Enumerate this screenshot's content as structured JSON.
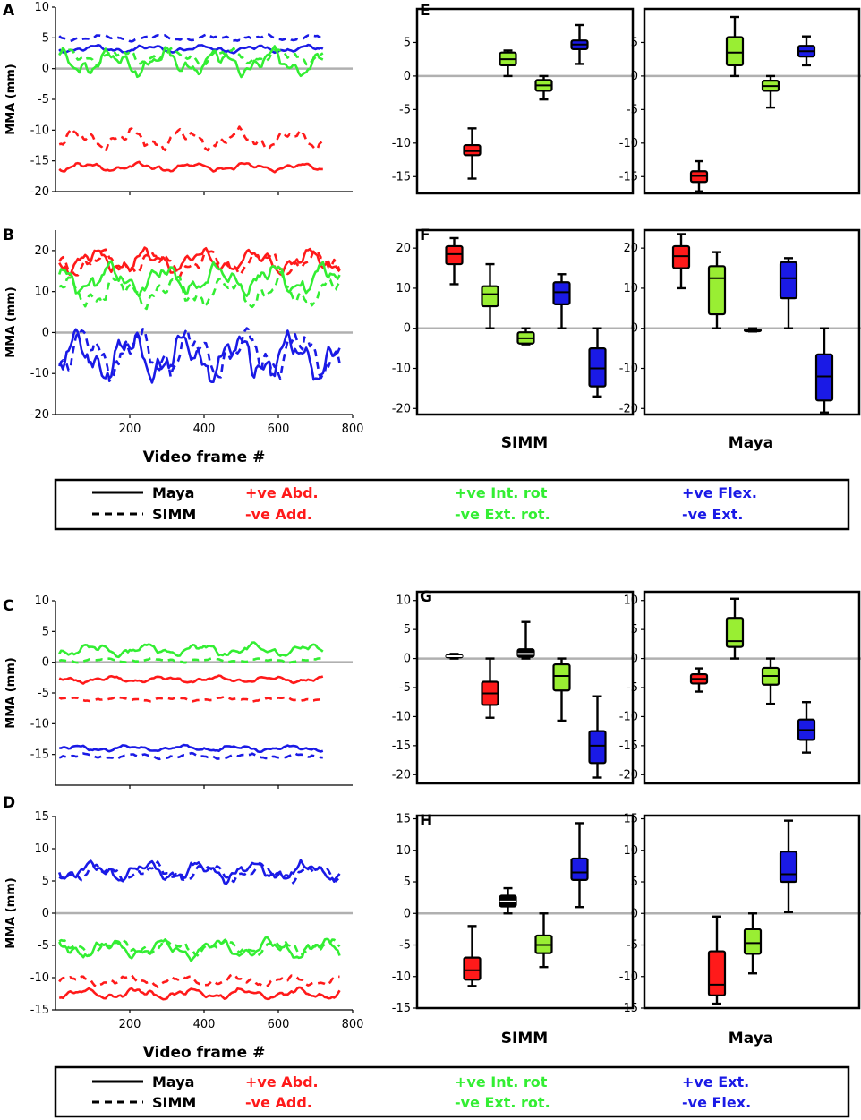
{
  "colors": {
    "red": "#ff1a1a",
    "green": "#33ee33",
    "blue": "#1a1ae6",
    "lime": "#99ee33",
    "black": "#000000",
    "zero": "#b0b0b0"
  },
  "legend_top": {
    "maya": "Maya",
    "simm": "SIMM",
    "items": [
      {
        "pos": "+ve Abd.",
        "neg": "-ve Add.",
        "color": "#ff1a1a"
      },
      {
        "pos": "+ve Int. rot",
        "neg": "-ve Ext. rot.",
        "color": "#33ee33"
      },
      {
        "pos": "+ve Flex.",
        "neg": "-ve Ext.",
        "color": "#1a1ae6"
      }
    ]
  },
  "legend_bottom": {
    "maya": "Maya",
    "simm": "SIMM",
    "items": [
      {
        "pos": "+ve Abd.",
        "neg": "-ve Add.",
        "color": "#ff1a1a"
      },
      {
        "pos": "+ve Int. rot",
        "neg": "-ve Ext. rot.",
        "color": "#33ee33"
      },
      {
        "pos": "+ve Ext.",
        "neg": "-ve Flex.",
        "color": "#1a1ae6"
      }
    ]
  },
  "group_labels": {
    "simm": "SIMM",
    "maya": "Maya"
  },
  "chart_data": [
    {
      "panel": "A",
      "type": "line",
      "ylabel": "MMA (mm)",
      "xlabel": "",
      "xlim": [
        0,
        800
      ],
      "ylim": [
        -20,
        10
      ],
      "yticks": [
        -20,
        -15,
        -10,
        -5,
        0,
        5,
        10
      ],
      "xticks": [],
      "series": [
        {
          "name": "Maya +ve Flex./-ve Ext.",
          "color": "blue",
          "dash": false,
          "base": 3.2,
          "amp": 0.7,
          "seed": 1
        },
        {
          "name": "SIMM +ve Flex./-ve Ext.",
          "color": "blue",
          "dash": true,
          "base": 5,
          "amp": 0.6,
          "seed": 2
        },
        {
          "name": "Maya +ve Int. rot/-ve Ext. rot.",
          "color": "green",
          "dash": false,
          "base": 1,
          "amp": 2.5,
          "seed": 3
        },
        {
          "name": "SIMM +ve Int. rot/-ve Ext. rot.",
          "color": "green",
          "dash": true,
          "base": 2,
          "amp": 1.5,
          "seed": 4
        },
        {
          "name": "SIMM +ve Abd./-ve Add.",
          "color": "red",
          "dash": true,
          "base": -11.5,
          "amp": 2,
          "seed": 5
        },
        {
          "name": "Maya +ve Abd./-ve Add.",
          "color": "red",
          "dash": false,
          "base": -16,
          "amp": 0.8,
          "seed": 6
        }
      ]
    },
    {
      "panel": "B",
      "type": "line",
      "ylabel": "MMA (mm)",
      "xlabel": "Video frame #",
      "xlim": [
        0,
        800
      ],
      "ylim": [
        -20,
        25
      ],
      "yticks": [
        -20,
        -10,
        0,
        10,
        20
      ],
      "xticks": [
        200,
        400,
        600,
        800
      ],
      "series": [
        {
          "name": "Maya +ve Abd./-ve Add.",
          "color": "red",
          "dash": false,
          "base": 17.5,
          "amp": 3.5,
          "seed": 7
        },
        {
          "name": "SIMM +ve Abd./-ve Add.",
          "color": "red",
          "dash": true,
          "base": 17,
          "amp": 3.5,
          "seed": 8
        },
        {
          "name": "Maya +ve Int. rot/-ve Ext. rot.",
          "color": "green",
          "dash": false,
          "base": 13,
          "amp": 4.5,
          "seed": 9
        },
        {
          "name": "SIMM +ve Int. rot/-ve Ext. rot.",
          "color": "green",
          "dash": true,
          "base": 10,
          "amp": 4.5,
          "seed": 10
        },
        {
          "name": "Maya +ve Flex./-ve Ext.",
          "color": "blue",
          "dash": false,
          "base": -6,
          "amp": 7,
          "seed": 11
        },
        {
          "name": "SIMM +ve Flex./-ve Ext.",
          "color": "blue",
          "dash": true,
          "base": -5,
          "amp": 7,
          "seed": 12
        }
      ]
    },
    {
      "panel": "C",
      "type": "line",
      "ylabel": "MMA (mm)",
      "xlabel": "",
      "xlim": [
        0,
        800
      ],
      "ylim": [
        -20,
        10
      ],
      "yticks": [
        -15,
        -10,
        -5,
        0,
        5,
        10
      ],
      "xticks": [],
      "series": [
        {
          "name": "Maya +ve Int. rot/-ve Ext. rot.",
          "color": "green",
          "dash": false,
          "base": 2,
          "amp": 1.2,
          "seed": 13
        },
        {
          "name": "SIMM +ve Int. rot/-ve Ext. rot.",
          "color": "green",
          "dash": true,
          "base": 0.3,
          "amp": 0.4,
          "seed": 14
        },
        {
          "name": "Maya +ve Abd./-ve Add.",
          "color": "red",
          "dash": false,
          "base": -2.8,
          "amp": 0.6,
          "seed": 15
        },
        {
          "name": "SIMM +ve Abd./-ve Add.",
          "color": "red",
          "dash": true,
          "base": -6,
          "amp": 0.4,
          "seed": 16
        },
        {
          "name": "Maya +ve Flex./-ve Ext.",
          "color": "blue",
          "dash": false,
          "base": -14,
          "amp": 0.6,
          "seed": 17
        },
        {
          "name": "SIMM +ve Flex./-ve Ext.",
          "color": "blue",
          "dash": true,
          "base": -15.3,
          "amp": 0.5,
          "seed": 18
        }
      ]
    },
    {
      "panel": "D",
      "type": "line",
      "ylabel": "MMA (mm)",
      "xlabel": "Video frame #",
      "xlim": [
        0,
        800
      ],
      "ylim": [
        -15,
        15
      ],
      "yticks": [
        -15,
        -10,
        -5,
        0,
        5,
        10,
        15
      ],
      "xticks": [
        200,
        400,
        600,
        800
      ],
      "series": [
        {
          "name": "Maya +ve Ext./-ve Flex.",
          "color": "blue",
          "dash": false,
          "base": 6.5,
          "amp": 1.8,
          "seed": 19
        },
        {
          "name": "SIMM +ve Ext./-ve Flex.",
          "color": "blue",
          "dash": true,
          "base": 6.3,
          "amp": 1.6,
          "seed": 20
        },
        {
          "name": "Maya +ve Int. rot/-ve Ext. rot.",
          "color": "green",
          "dash": false,
          "base": -5.5,
          "amp": 1.8,
          "seed": 21
        },
        {
          "name": "SIMM +ve Int. rot/-ve Ext. rot.",
          "color": "green",
          "dash": true,
          "base": -5.3,
          "amp": 1.4,
          "seed": 22
        },
        {
          "name": "SIMM +ve Abd./-ve Add.",
          "color": "red",
          "dash": true,
          "base": -10.5,
          "amp": 1,
          "seed": 23
        },
        {
          "name": "Maya +ve Abd./-ve Add.",
          "color": "red",
          "dash": false,
          "base": -12.5,
          "amp": 1,
          "seed": 24
        }
      ]
    },
    {
      "panel": "E",
      "type": "box",
      "ylim": [
        -17.5,
        10
      ],
      "yticks": [
        -15,
        -10,
        -5,
        0,
        5
      ],
      "groups": [
        {
          "name": "SIMM",
          "boxes": [
            {
              "color": "red",
              "min": -15.3,
              "q1": -11.8,
              "median": -11.2,
              "q3": -10.3,
              "max": -7.8
            },
            {
              "color": "lime",
              "min": 0,
              "q1": 1.6,
              "median": 2.5,
              "q3": 3.5,
              "max": 3.8
            },
            {
              "color": "lime",
              "min": -3.5,
              "q1": -2.2,
              "median": -1.4,
              "q3": -0.6,
              "max": 0
            },
            {
              "color": "blue",
              "min": 1.8,
              "q1": 4,
              "median": 4.7,
              "q3": 5.3,
              "max": 7.6
            }
          ]
        },
        {
          "name": "Maya",
          "boxes": [
            {
              "color": "red",
              "min": -17.2,
              "q1": -15.8,
              "median": -14.9,
              "q3": -14.2,
              "max": -12.7
            },
            {
              "color": "lime",
              "min": 0,
              "q1": 1.6,
              "median": 3.5,
              "q3": 5.8,
              "max": 8.8
            },
            {
              "color": "lime",
              "min": -4.7,
              "q1": -2.2,
              "median": -1.5,
              "q3": -0.7,
              "max": 0
            },
            {
              "color": "blue",
              "min": 1.6,
              "q1": 2.9,
              "median": 3.7,
              "q3": 4.5,
              "max": 5.9
            }
          ]
        }
      ]
    },
    {
      "panel": "F",
      "type": "box",
      "ylim": [
        -21.5,
        24.5
      ],
      "yticks": [
        -20,
        -10,
        0,
        10,
        20
      ],
      "groups": [
        {
          "name": "SIMM",
          "boxes": [
            {
              "color": "red",
              "min": 11,
              "q1": 16,
              "median": 18.5,
              "q3": 20.5,
              "max": 22.5
            },
            {
              "color": "lime",
              "min": 0,
              "q1": 5.5,
              "median": 8.5,
              "q3": 10.5,
              "max": 16
            },
            {
              "color": "lime",
              "min": -4,
              "q1": -3.8,
              "median": -2.5,
              "q3": -1,
              "max": 0
            },
            {
              "color": "blue",
              "min": 0,
              "q1": 6,
              "median": 9,
              "q3": 11.5,
              "max": 13.5
            },
            {
              "color": "blue",
              "min": -17,
              "q1": -14.5,
              "median": -10,
              "q3": -5,
              "max": 0
            }
          ]
        },
        {
          "name": "Maya",
          "boxes": [
            {
              "color": "red",
              "min": 10,
              "q1": 15,
              "median": 18,
              "q3": 20.5,
              "max": 23.5
            },
            {
              "color": "lime",
              "min": 0,
              "q1": 3.5,
              "median": 12.5,
              "q3": 15.5,
              "max": 19
            },
            {
              "color": "lime",
              "min": -0.8,
              "q1": -0.6,
              "median": -0.5,
              "q3": -0.3,
              "max": 0
            },
            {
              "color": "blue",
              "min": 0,
              "q1": 7.5,
              "median": 12.5,
              "q3": 16.5,
              "max": 17.5
            },
            {
              "color": "blue",
              "min": -21,
              "q1": -18,
              "median": -12,
              "q3": -6.5,
              "max": 0
            }
          ]
        }
      ]
    },
    {
      "panel": "G",
      "type": "box",
      "ylim": [
        -21.5,
        11.5
      ],
      "yticks": [
        -20,
        -15,
        -10,
        -5,
        0,
        5,
        10
      ],
      "groups": [
        {
          "name": "SIMM",
          "boxes": [
            {
              "color": "black",
              "min": 0,
              "q1": 0.2,
              "median": 0.4,
              "q3": 0.6,
              "max": 0.8
            },
            {
              "color": "red",
              "min": -10.2,
              "q1": -8,
              "median": -6,
              "q3": -4,
              "max": 0
            },
            {
              "color": "black",
              "min": 0,
              "q1": 0.3,
              "median": 0.8,
              "q3": 1.6,
              "max": 6.3
            },
            {
              "color": "lime",
              "min": -10.7,
              "q1": -5.5,
              "median": -3,
              "q3": -1,
              "max": 0
            },
            {
              "color": "blue",
              "min": -20.5,
              "q1": -18,
              "median": -15,
              "q3": -12.5,
              "max": -6.5
            }
          ]
        },
        {
          "name": "Maya",
          "boxes": [
            {
              "color": "red",
              "min": -5.7,
              "q1": -4.3,
              "median": -3.5,
              "q3": -2.7,
              "max": -1.7
            },
            {
              "color": "lime",
              "min": 0,
              "q1": 2,
              "median": 3,
              "q3": 7,
              "max": 10.3
            },
            {
              "color": "lime",
              "min": -7.8,
              "q1": -4.5,
              "median": -3,
              "q3": -1.6,
              "max": 0
            },
            {
              "color": "blue",
              "min": -16.2,
              "q1": -14,
              "median": -12.3,
              "q3": -10.5,
              "max": -7.5
            }
          ]
        }
      ]
    },
    {
      "panel": "H",
      "type": "box",
      "ylim": [
        -15,
        15.5
      ],
      "yticks": [
        -15,
        -10,
        -5,
        0,
        5,
        10,
        15
      ],
      "groups": [
        {
          "name": "SIMM",
          "boxes": [
            {
              "color": "red",
              "min": -11.5,
              "q1": -10.5,
              "median": -9,
              "q3": -7,
              "max": -2
            },
            {
              "color": "black",
              "min": 0,
              "q1": 1.1,
              "median": 1.9,
              "q3": 2.8,
              "max": 4
            },
            {
              "color": "lime",
              "min": -8.5,
              "q1": -6.3,
              "median": -5,
              "q3": -3.5,
              "max": 0
            },
            {
              "color": "blue",
              "min": 1,
              "q1": 5.3,
              "median": 6.5,
              "q3": 8.7,
              "max": 14.3
            }
          ]
        },
        {
          "name": "Maya",
          "boxes": [
            {
              "color": "red",
              "min": -14.3,
              "q1": -13,
              "median": -11.3,
              "q3": -6,
              "max": -0.5
            },
            {
              "color": "lime",
              "min": -9.5,
              "q1": -6.4,
              "median": -4.7,
              "q3": -2.5,
              "max": 0
            },
            {
              "color": "blue",
              "min": 0.2,
              "q1": 5,
              "median": 6.2,
              "q3": 9.8,
              "max": 14.7
            }
          ]
        }
      ]
    }
  ]
}
